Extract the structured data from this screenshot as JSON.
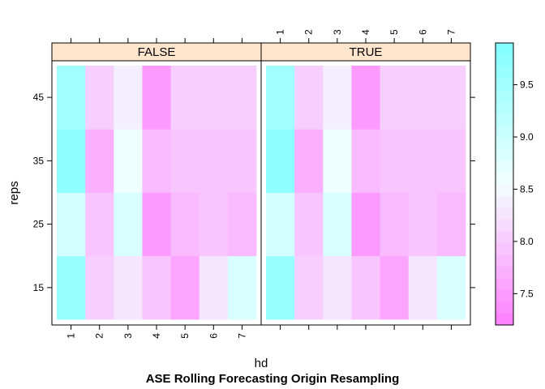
{
  "chart_data": {
    "type": "heatmap",
    "title": "ASE Rolling Forecasting Origin Resampling",
    "xlabel": "hd",
    "ylabel": "reps",
    "x_categories": [
      "1",
      "2",
      "3",
      "4",
      "5",
      "6",
      "7"
    ],
    "y_levels": [
      15,
      25,
      35,
      45
    ],
    "y_ticks": [
      "15",
      "25",
      "35",
      "45"
    ],
    "x_ticks_bottom": [
      "1",
      "2",
      "3",
      "4",
      "5",
      "6",
      "7"
    ],
    "x_ticks_top": [
      "1",
      "2",
      "3",
      "4",
      "5",
      "6",
      "7"
    ],
    "panels": [
      {
        "label": "FALSE",
        "values": [
          [
            9.6,
            8.0,
            8.3,
            7.9,
            7.6,
            8.3,
            8.8
          ],
          [
            8.9,
            7.9,
            8.8,
            7.5,
            7.8,
            7.9,
            7.8
          ],
          [
            9.7,
            7.7,
            8.6,
            7.8,
            7.9,
            7.9,
            7.9
          ],
          [
            9.5,
            8.1,
            8.4,
            7.5,
            8.0,
            8.0,
            8.1
          ]
        ]
      },
      {
        "label": "TRUE",
        "values": [
          [
            9.6,
            8.0,
            8.3,
            7.9,
            7.6,
            8.3,
            8.8
          ],
          [
            8.9,
            7.9,
            8.8,
            7.5,
            7.8,
            7.9,
            7.8
          ],
          [
            9.7,
            7.7,
            8.6,
            7.8,
            7.9,
            7.9,
            7.9
          ],
          [
            9.5,
            8.1,
            8.4,
            7.5,
            8.0,
            8.0,
            8.1
          ]
        ]
      }
    ],
    "colorbar": {
      "range": [
        7.2,
        9.9
      ],
      "ticks": [
        7.5,
        8.0,
        8.5,
        9.0,
        9.5
      ],
      "tick_labels": [
        "7.5",
        "8.0",
        "8.5",
        "9.0",
        "9.5"
      ]
    },
    "colors": {
      "low": "#ff80ff",
      "mid": "#f2ffff",
      "high": "#80ffff",
      "strip": "#ffe5cc"
    },
    "legend_placement": "right"
  }
}
